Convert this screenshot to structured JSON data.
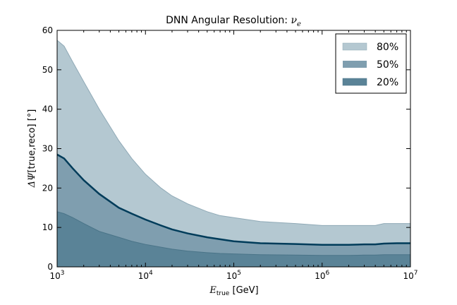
{
  "chart_data": {
    "type": "area",
    "title": "DNN Angular Resolution: ",
    "title_math": "ν",
    "title_math_sub": "e",
    "xlabel_main": "E",
    "xlabel_sub": "true",
    "xlabel_rest": " [GeV]",
    "ylabel_main": "ΔΨ",
    "ylabel_rest": "[true,reco] [°]",
    "x_scale": "log",
    "xlim": [
      1000,
      10000000
    ],
    "ylim": [
      0,
      60
    ],
    "x_ticks": [
      {
        "value": 1000,
        "base": "10",
        "exp": "3"
      },
      {
        "value": 10000,
        "base": "10",
        "exp": "4"
      },
      {
        "value": 100000,
        "base": "10",
        "exp": "5"
      },
      {
        "value": 1000000,
        "base": "10",
        "exp": "6"
      },
      {
        "value": 10000000,
        "base": "10",
        "exp": "7"
      }
    ],
    "y_ticks": [
      0,
      10,
      20,
      30,
      40,
      50,
      60
    ],
    "grid": false,
    "legend_placement": "top-right",
    "x": [
      1000,
      1200,
      1500,
      2000,
      3000,
      5000,
      7000,
      10000,
      15000,
      20000,
      30000,
      50000,
      70000,
      100000,
      200000,
      500000,
      1000000,
      2000000,
      3000000,
      4000000,
      5000000,
      7000000,
      10000000
    ],
    "series": [
      {
        "name": "80%",
        "color": "#b4c8d1",
        "line_color": "#8fa9b6",
        "values": [
          57.5,
          56,
          52,
          47,
          40,
          32,
          27.5,
          23.5,
          20,
          18,
          16,
          14,
          13,
          12.5,
          11.5,
          11,
          10.5,
          10.5,
          10.5,
          10.5,
          11,
          11,
          11
        ]
      },
      {
        "name": "50%",
        "color": "#7f9eaf",
        "line_color": "#003c5a",
        "values": [
          28.5,
          27.5,
          25,
          22,
          18.5,
          15,
          13.5,
          12,
          10.5,
          9.5,
          8.5,
          7.5,
          7,
          6.5,
          6,
          5.8,
          5.6,
          5.6,
          5.7,
          5.7,
          5.9,
          6,
          6
        ]
      },
      {
        "name": "20%",
        "color": "#5a8397",
        "line_color": "#4a7488",
        "values": [
          14,
          13.5,
          12.5,
          11,
          9,
          7.5,
          6.5,
          5.7,
          5,
          4.5,
          4,
          3.6,
          3.4,
          3.3,
          3.1,
          3,
          2.9,
          2.9,
          3,
          3,
          3.1,
          3.1,
          3.1
        ]
      }
    ]
  }
}
